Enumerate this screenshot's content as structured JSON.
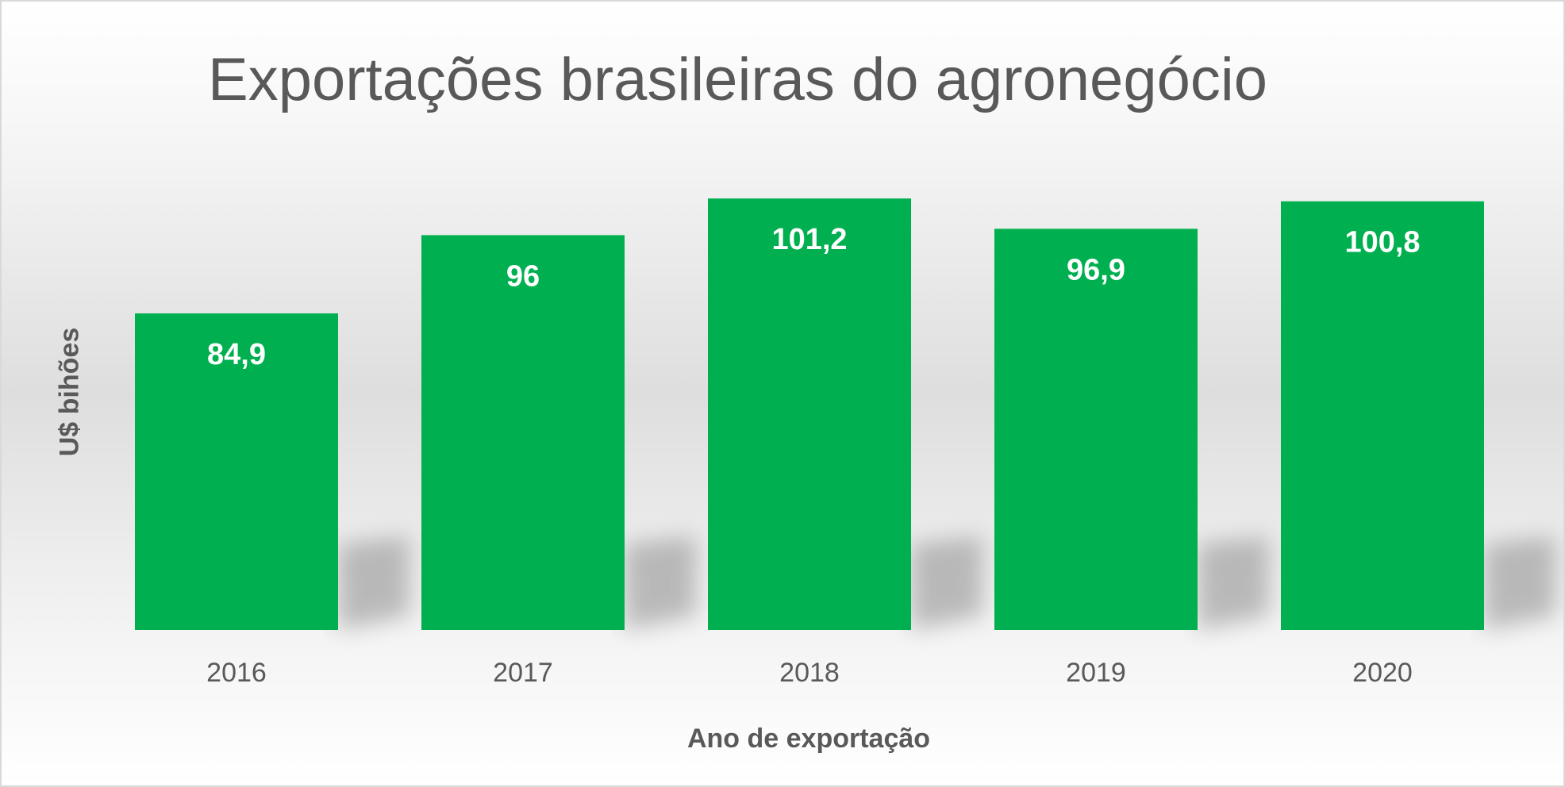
{
  "chart_data": {
    "type": "bar",
    "title": "Exportações brasileiras do agronegócio",
    "xlabel": "Ano de exportação",
    "ylabel": "U$ bihões",
    "categories": [
      "2016",
      "2017",
      "2018",
      "2019",
      "2020"
    ],
    "values": [
      84.9,
      96,
      101.2,
      96.9,
      100.8
    ],
    "value_labels": [
      "84,9",
      "96",
      "101,2",
      "96,9",
      "100,8"
    ],
    "ylim": [
      40,
      110
    ],
    "grid": false,
    "legend": "none",
    "colors": {
      "bar": "#00b050",
      "text": "#595959"
    }
  }
}
